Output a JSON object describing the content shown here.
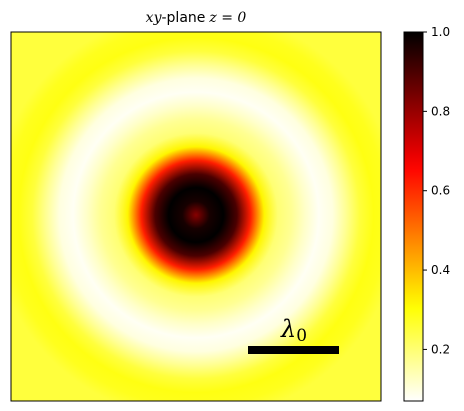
{
  "chart_data": {
    "type": "heatmap",
    "title": {
      "prefix_math": "xy",
      "text": "-plane",
      "suffix_math": "z = 0"
    },
    "colormap": "hot_r",
    "colorbar": {
      "range": [
        0.07,
        1.0
      ],
      "ticks": [
        0.2,
        0.4,
        0.6,
        0.8,
        1.0
      ],
      "tick_labels": [
        "0.2",
        "0.4",
        "0.6",
        "0.8",
        "1.0"
      ]
    },
    "axes_ticks_visible": false,
    "grid": false,
    "pattern": {
      "description_type": "radial",
      "profile_radius_in_wavelengths": [
        0.0,
        0.15,
        0.3,
        0.45,
        0.6,
        0.75,
        0.9,
        1.05,
        1.2,
        1.35,
        1.5,
        1.65,
        1.8,
        1.95,
        2.1,
        2.25
      ],
      "profile_value": [
        0.82,
        0.97,
        1.0,
        0.9,
        0.62,
        0.32,
        0.2,
        0.17,
        0.12,
        0.08,
        0.1,
        0.17,
        0.25,
        0.29,
        0.28,
        0.25
      ]
    },
    "scalebar": {
      "label_main": "λ",
      "label_sub": "0",
      "length_in_wavelengths": 1.0
    }
  }
}
